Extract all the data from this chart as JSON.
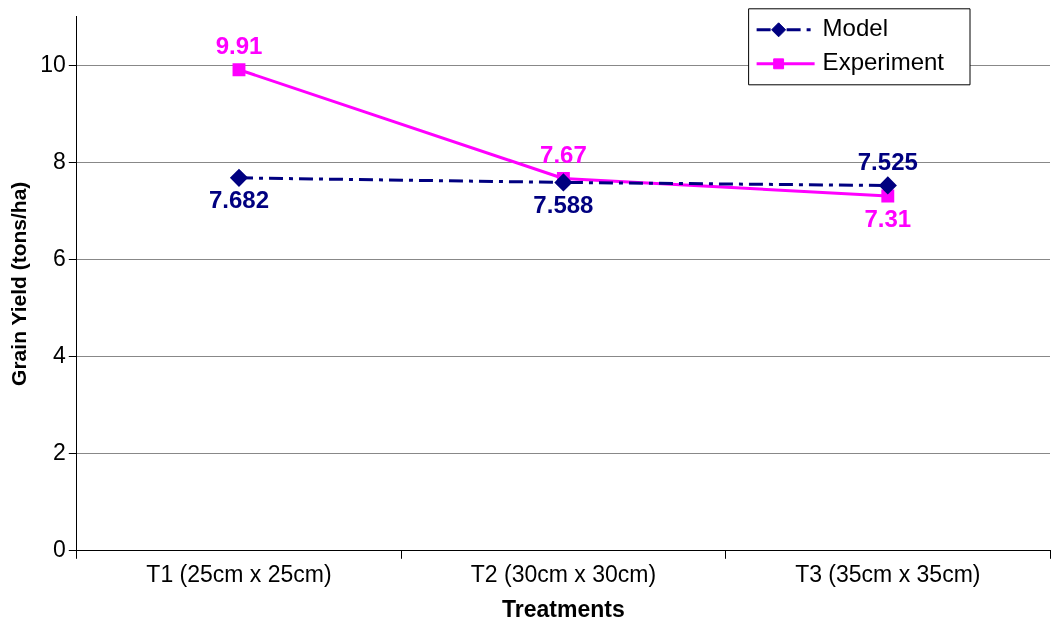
{
  "chart_data": {
    "type": "line",
    "xlabel": "Treatments",
    "ylabel": "Grain Yield (tons/ha)",
    "categories": [
      "T1 (25cm x 25cm)",
      "T2 (30cm x 30cm)",
      "T3 (35cm x 35cm)"
    ],
    "series": [
      {
        "name": "Model",
        "color": "#000080",
        "values": [
          7.682,
          7.588,
          7.525
        ],
        "marker": "diamond",
        "line_style": "dashdot"
      },
      {
        "name": "Experiment",
        "color": "#ff00ff",
        "values": [
          9.91,
          7.67,
          7.31
        ],
        "marker": "square",
        "line_style": "solid"
      }
    ],
    "ylim": [
      0,
      11
    ],
    "yticks": [
      0,
      2,
      4,
      6,
      8,
      10
    ],
    "grid": "y",
    "legend": "top right",
    "data_labels": true
  }
}
